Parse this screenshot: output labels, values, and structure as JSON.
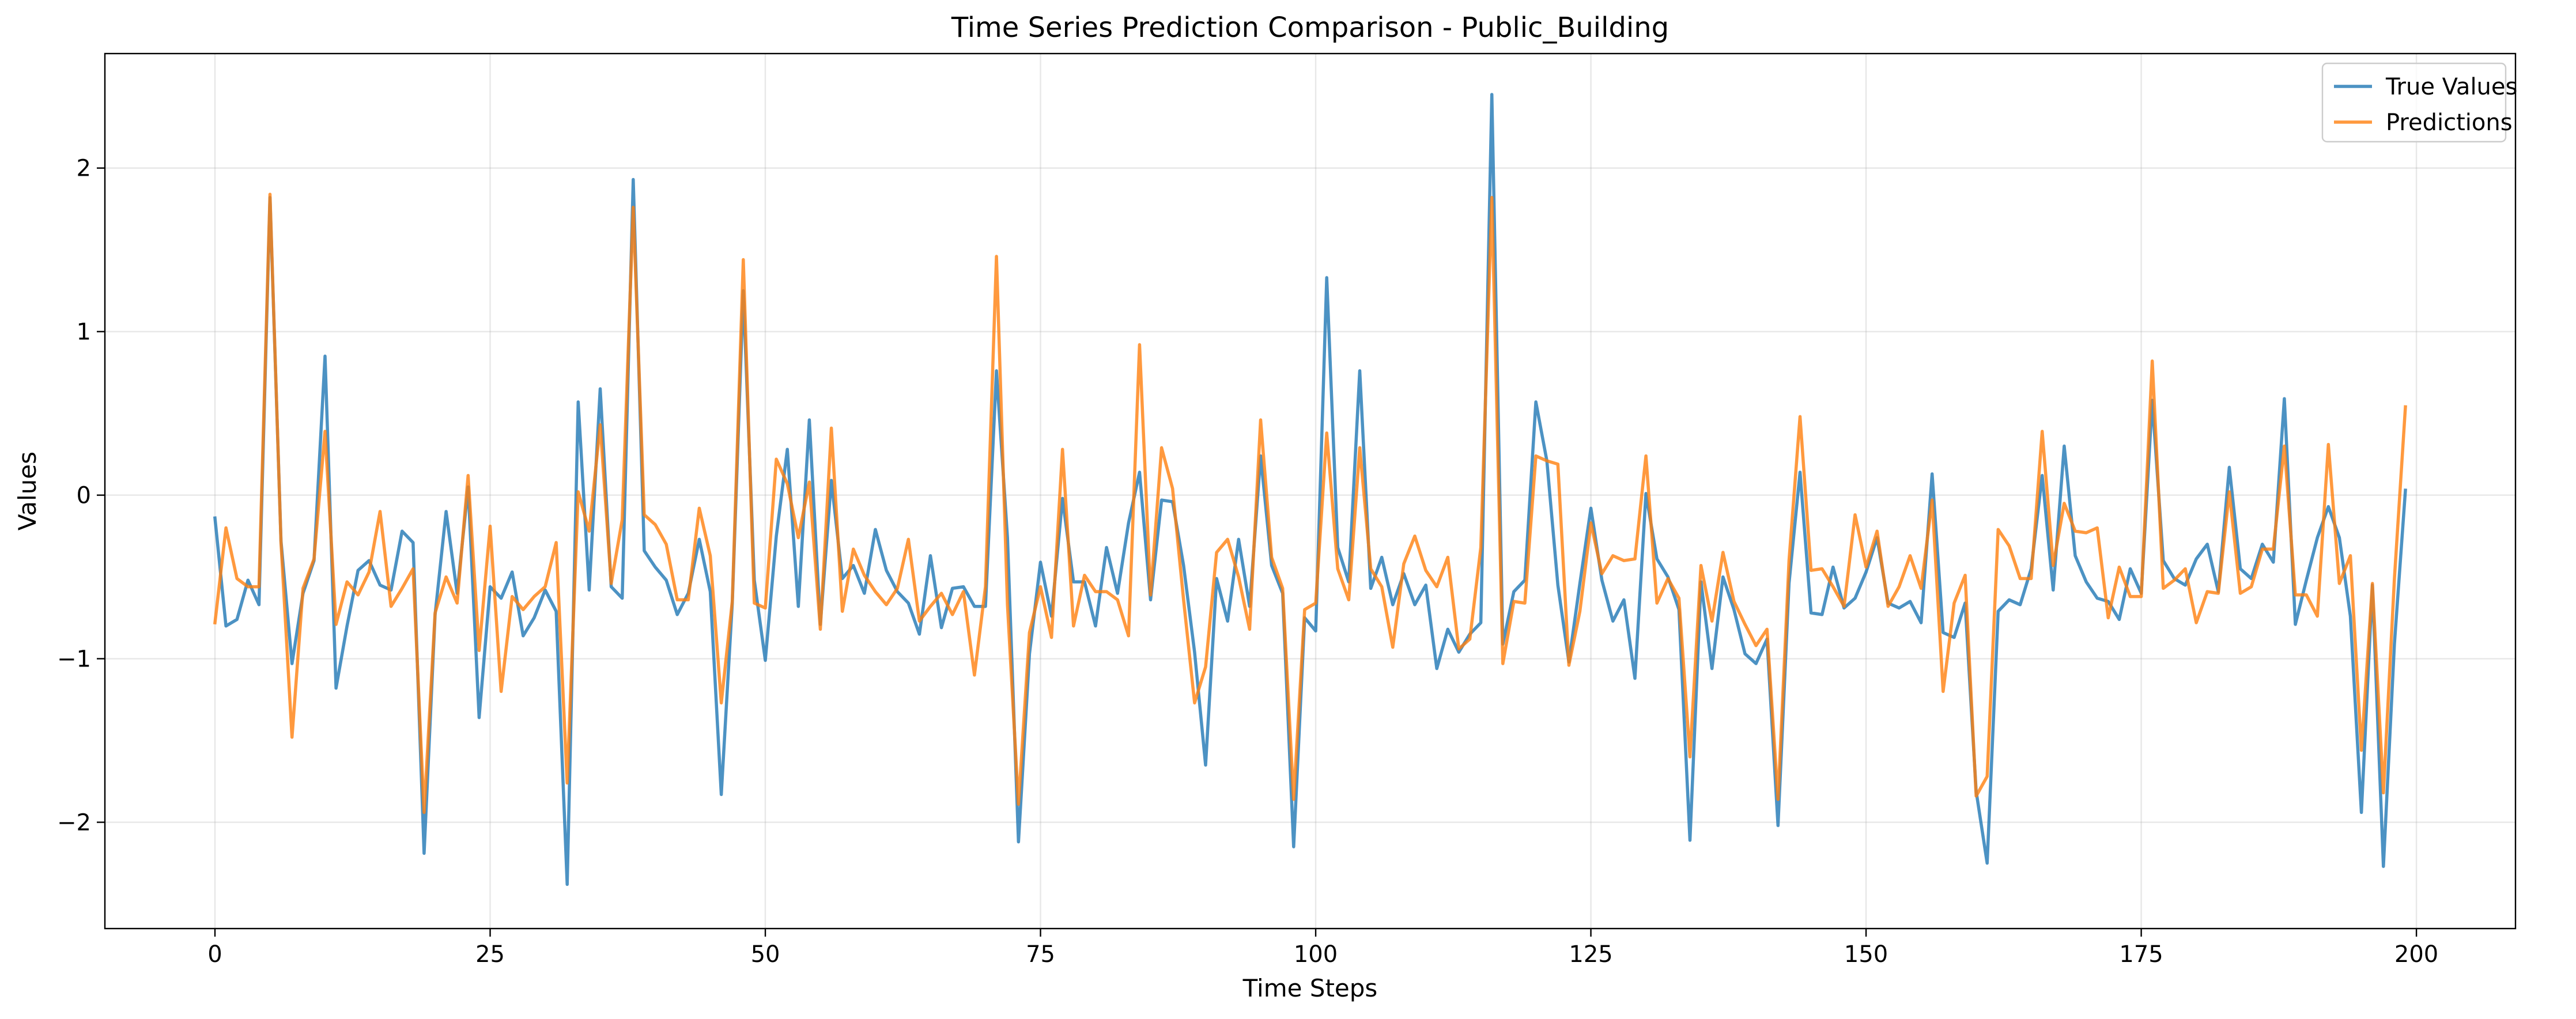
{
  "chart_data": {
    "type": "line",
    "title": "Time Series Prediction Comparison - Public_Building",
    "xlabel": "Time Steps",
    "ylabel": "Values",
    "xlim": [
      -10,
      209
    ],
    "ylim": [
      -2.65,
      2.7
    ],
    "xticks": [
      0,
      25,
      50,
      75,
      100,
      125,
      150,
      175,
      200
    ],
    "yticks": [
      -2,
      -1,
      0,
      1,
      2
    ],
    "ytick_labels": [
      "−2",
      "−1",
      "0",
      "1",
      "2"
    ],
    "grid": true,
    "legend_position": "top-right",
    "series": [
      {
        "name": "True Values",
        "color": "#1f77b4",
        "values": [
          -0.14,
          -0.8,
          -0.76,
          -0.52,
          -0.67,
          1.82,
          -0.28,
          -1.03,
          -0.6,
          -0.4,
          0.85,
          -1.18,
          -0.8,
          -0.46,
          -0.4,
          -0.55,
          -0.58,
          -0.22,
          -0.29,
          -2.19,
          -0.73,
          -0.1,
          -0.6,
          0.05,
          -1.36,
          -0.56,
          -0.63,
          -0.47,
          -0.86,
          -0.75,
          -0.58,
          -0.71,
          -2.38,
          0.57,
          -0.58,
          0.65,
          -0.56,
          -0.63,
          1.93,
          -0.34,
          -0.44,
          -0.52,
          -0.73,
          -0.6,
          -0.27,
          -0.59,
          -1.83,
          -0.66,
          1.25,
          -0.52,
          -1.01,
          -0.25,
          0.28,
          -0.68,
          0.46,
          -0.79,
          0.09,
          -0.51,
          -0.43,
          -0.6,
          -0.21,
          -0.46,
          -0.59,
          -0.66,
          -0.85,
          -0.37,
          -0.81,
          -0.57,
          -0.56,
          -0.68,
          -0.68,
          0.76,
          -0.26,
          -2.12,
          -0.97,
          -0.41,
          -0.74,
          -0.02,
          -0.53,
          -0.53,
          -0.8,
          -0.32,
          -0.6,
          -0.17,
          0.14,
          -0.64,
          -0.03,
          -0.04,
          -0.43,
          -0.96,
          -1.65,
          -0.51,
          -0.77,
          -0.27,
          -0.68,
          0.24,
          -0.43,
          -0.6,
          -2.15,
          -0.75,
          -0.83,
          1.33,
          -0.32,
          -0.53,
          0.76,
          -0.57,
          -0.38,
          -0.67,
          -0.48,
          -0.67,
          -0.55,
          -1.06,
          -0.82,
          -0.96,
          -0.85,
          -0.78,
          2.45,
          -0.91,
          -0.59,
          -0.52,
          0.57,
          0.21,
          -0.55,
          -1.02,
          -0.54,
          -0.08,
          -0.52,
          -0.77,
          -0.64,
          -1.12,
          0.01,
          -0.39,
          -0.5,
          -0.7,
          -2.11,
          -0.53,
          -1.06,
          -0.5,
          -0.7,
          -0.97,
          -1.03,
          -0.88,
          -2.02,
          -0.54,
          0.14,
          -0.72,
          -0.73,
          -0.44,
          -0.69,
          -0.63,
          -0.47,
          -0.26,
          -0.66,
          -0.69,
          -0.65,
          -0.78,
          0.13,
          -0.84,
          -0.87,
          -0.66,
          -1.81,
          -2.25,
          -0.71,
          -0.64,
          -0.67,
          -0.45,
          0.12,
          -0.58,
          0.3,
          -0.37,
          -0.53,
          -0.63,
          -0.65,
          -0.76,
          -0.45,
          -0.6,
          0.58,
          -0.4,
          -0.51,
          -0.55,
          -0.39,
          -0.3,
          -0.59,
          0.17,
          -0.45,
          -0.51,
          -0.3,
          -0.41,
          0.59,
          -0.79,
          -0.52,
          -0.26,
          -0.07,
          -0.26,
          -0.74,
          -1.94,
          -0.55,
          -2.27,
          -0.91,
          0.03
        ]
      },
      {
        "name": "Predictions",
        "color": "#ff7f0e",
        "values": [
          -0.78,
          -0.2,
          -0.51,
          -0.56,
          -0.56,
          1.84,
          -0.29,
          -1.48,
          -0.57,
          -0.39,
          0.39,
          -0.79,
          -0.53,
          -0.61,
          -0.47,
          -0.1,
          -0.68,
          -0.57,
          -0.45,
          -1.94,
          -0.72,
          -0.5,
          -0.66,
          0.12,
          -0.95,
          -0.19,
          -1.2,
          -0.62,
          -0.7,
          -0.62,
          -0.56,
          -0.29,
          -1.76,
          0.02,
          -0.22,
          0.43,
          -0.54,
          -0.15,
          1.76,
          -0.12,
          -0.18,
          -0.3,
          -0.64,
          -0.64,
          -0.08,
          -0.37,
          -1.27,
          -0.65,
          1.44,
          -0.66,
          -0.69,
          0.22,
          0.07,
          -0.26,
          0.08,
          -0.82,
          0.41,
          -0.71,
          -0.33,
          -0.49,
          -0.59,
          -0.67,
          -0.57,
          -0.27,
          -0.77,
          -0.68,
          -0.6,
          -0.73,
          -0.59,
          -1.1,
          -0.56,
          1.46,
          -0.67,
          -1.89,
          -0.84,
          -0.56,
          -0.87,
          0.28,
          -0.8,
          -0.49,
          -0.59,
          -0.59,
          -0.64,
          -0.86,
          0.92,
          -0.61,
          0.29,
          0.04,
          -0.64,
          -1.27,
          -1.05,
          -0.35,
          -0.27,
          -0.5,
          -0.82,
          0.46,
          -0.38,
          -0.57,
          -1.86,
          -0.7,
          -0.66,
          0.38,
          -0.45,
          -0.64,
          0.29,
          -0.45,
          -0.56,
          -0.93,
          -0.42,
          -0.25,
          -0.46,
          -0.56,
          -0.38,
          -0.94,
          -0.88,
          -0.32,
          1.82,
          -1.03,
          -0.65,
          -0.66,
          0.24,
          0.21,
          0.19,
          -1.04,
          -0.71,
          -0.17,
          -0.48,
          -0.37,
          -0.4,
          -0.39,
          0.24,
          -0.66,
          -0.51,
          -0.63,
          -1.6,
          -0.43,
          -0.77,
          -0.35,
          -0.65,
          -0.79,
          -0.92,
          -0.82,
          -1.86,
          -0.4,
          0.48,
          -0.46,
          -0.45,
          -0.56,
          -0.68,
          -0.12,
          -0.44,
          -0.22,
          -0.68,
          -0.56,
          -0.37,
          -0.57,
          -0.03,
          -1.2,
          -0.66,
          -0.49,
          -1.84,
          -1.72,
          -0.21,
          -0.31,
          -0.51,
          -0.51,
          0.39,
          -0.43,
          -0.05,
          -0.22,
          -0.23,
          -0.2,
          -0.75,
          -0.44,
          -0.62,
          -0.62,
          0.82,
          -0.57,
          -0.52,
          -0.45,
          -0.78,
          -0.59,
          -0.6,
          0.02,
          -0.6,
          -0.56,
          -0.33,
          -0.33,
          0.3,
          -0.61,
          -0.61,
          -0.74,
          0.31,
          -0.54,
          -0.37,
          -1.56,
          -0.54,
          -1.82,
          -0.51,
          0.54
        ]
      }
    ]
  }
}
